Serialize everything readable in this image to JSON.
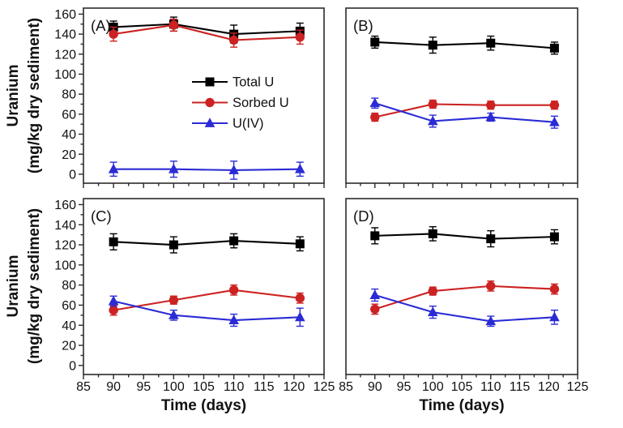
{
  "figure": {
    "ylabel_line1": "Uranium",
    "ylabel_line2": "(mg/kg dry sediment)",
    "xlabel": "Time (days)",
    "background": "#ffffff",
    "frame_color": "#2b2b2b"
  },
  "axes": {
    "xlim": [
      85,
      125
    ],
    "ylim": [
      -9,
      166
    ],
    "xticks": [
      85,
      90,
      95,
      100,
      105,
      110,
      115,
      120,
      125
    ],
    "x_minor_ticks": [
      87.5,
      92.5,
      97.5,
      102.5,
      107.5,
      112.5,
      117.5,
      122.5
    ],
    "yticks": [
      0,
      20,
      40,
      60,
      80,
      100,
      120,
      140,
      160
    ],
    "y_minor_ticks": [
      10,
      30,
      50,
      70,
      90,
      110,
      130,
      150
    ],
    "grid": false,
    "legend_position": "inside panel A, center"
  },
  "legend": {
    "entries": [
      "Total U",
      "Sorbed U",
      "U(IV)"
    ]
  },
  "colors": {
    "total_u": "#000000",
    "sorbed_u": "#cc2222",
    "u_iv": "#2b2bd5"
  },
  "chart_data": [
    {
      "type": "line",
      "panel_label": "(A)",
      "x": [
        90,
        100,
        110,
        121
      ],
      "series": [
        {
          "name": "Total U",
          "color": "#000000",
          "marker": "square",
          "values": [
            147,
            150,
            140,
            143
          ],
          "err": [
            6,
            7,
            9,
            8
          ]
        },
        {
          "name": "Sorbed U",
          "color": "#cc2222",
          "marker": "circle",
          "values": [
            140,
            149,
            134,
            137
          ],
          "err": [
            7,
            6,
            7,
            7
          ]
        },
        {
          "name": "U(IV)",
          "color": "#2b2bd5",
          "marker": "triangle",
          "values": [
            5,
            5,
            4,
            5
          ],
          "err": [
            7,
            8,
            9,
            7
          ]
        }
      ]
    },
    {
      "type": "line",
      "panel_label": "(B)",
      "x": [
        90,
        100,
        110,
        121
      ],
      "series": [
        {
          "name": "Total U",
          "color": "#000000",
          "marker": "square",
          "values": [
            132,
            129,
            131,
            126
          ],
          "err": [
            6,
            8,
            7,
            6
          ]
        },
        {
          "name": "Sorbed U",
          "color": "#cc2222",
          "marker": "circle",
          "values": [
            57,
            70,
            69,
            69
          ],
          "err": [
            4,
            4,
            4,
            4
          ]
        },
        {
          "name": "U(IV)",
          "color": "#2b2bd5",
          "marker": "triangle",
          "values": [
            71,
            53,
            57,
            52
          ],
          "err": [
            5,
            6,
            4,
            6
          ]
        }
      ]
    },
    {
      "type": "line",
      "panel_label": "(C)",
      "x": [
        90,
        100,
        110,
        121
      ],
      "series": [
        {
          "name": "Total U",
          "color": "#000000",
          "marker": "square",
          "values": [
            123,
            120,
            124,
            121
          ],
          "err": [
            8,
            8,
            7,
            7
          ]
        },
        {
          "name": "Sorbed U",
          "color": "#cc2222",
          "marker": "circle",
          "values": [
            55,
            65,
            75,
            67
          ],
          "err": [
            5,
            4,
            5,
            5
          ]
        },
        {
          "name": "U(IV)",
          "color": "#2b2bd5",
          "marker": "triangle",
          "values": [
            64,
            50,
            45,
            48
          ],
          "err": [
            5,
            5,
            6,
            9
          ]
        }
      ]
    },
    {
      "type": "line",
      "panel_label": "(D)",
      "x": [
        90,
        100,
        110,
        121
      ],
      "series": [
        {
          "name": "Total U",
          "color": "#000000",
          "marker": "square",
          "values": [
            129,
            131,
            126,
            128
          ],
          "err": [
            8,
            7,
            8,
            7
          ]
        },
        {
          "name": "Sorbed U",
          "color": "#cc2222",
          "marker": "circle",
          "values": [
            56,
            74,
            79,
            76
          ],
          "err": [
            5,
            4,
            5,
            5
          ]
        },
        {
          "name": "U(IV)",
          "color": "#2b2bd5",
          "marker": "triangle",
          "values": [
            70,
            53,
            44,
            48
          ],
          "err": [
            6,
            6,
            5,
            7
          ]
        }
      ]
    }
  ]
}
